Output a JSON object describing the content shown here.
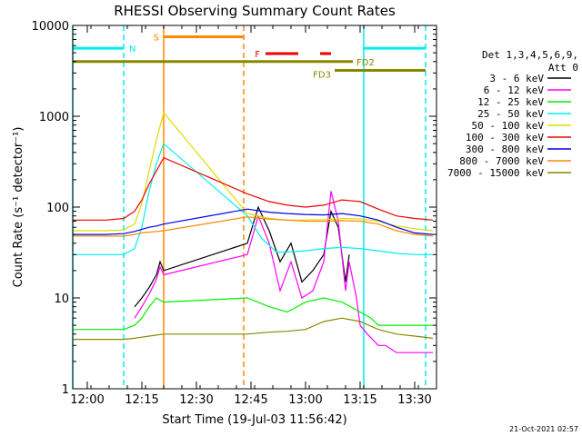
{
  "chart_data": {
    "type": "line",
    "title": "RHESSI Observing Summary Count Rates",
    "xlabel": "Start Time (19-Jul-03 11:56:42)",
    "ylabel": "Count Rate (s⁻¹ detector⁻¹)",
    "xlim": [
      "11:56",
      "13:36"
    ],
    "ylim": [
      1,
      10000
    ],
    "yscale": "log",
    "x_ticks": [
      "12:00",
      "12:15",
      "12:30",
      "12:45",
      "13:00",
      "13:15",
      "13:30"
    ],
    "y_ticks": [
      "1",
      "10",
      "100",
      "1000",
      "10000"
    ],
    "grid": false,
    "legend_header": [
      "Det 1,3,4,5,6,9,",
      "Att 0"
    ],
    "legend_position": "right",
    "series": [
      {
        "name": "3 - 6 keV",
        "color": "#000000",
        "x": [
          "12:13",
          "12:15",
          "12:17",
          "12:19",
          "12:20",
          "12:21",
          "12:44",
          "12:47",
          "12:50",
          "12:53",
          "12:56",
          "12:59",
          "13:02",
          "13:05",
          "13:07",
          "13:09",
          "13:11",
          "13:12"
        ],
        "y": [
          8,
          10,
          13,
          18,
          25,
          20,
          40,
          100,
          55,
          25,
          40,
          15,
          20,
          30,
          90,
          60,
          15,
          30
        ]
      },
      {
        "name": "6 - 12 keV",
        "color": "#ff00ff",
        "x": [
          "12:13",
          "12:15",
          "12:17",
          "12:19",
          "12:20",
          "12:21",
          "12:44",
          "12:47",
          "12:50",
          "12:53",
          "12:56",
          "12:59",
          "13:02",
          "13:05",
          "13:07",
          "13:09",
          "13:11",
          "13:12",
          "13:14",
          "13:15",
          "13:17",
          "13:20",
          "13:22",
          "13:25",
          "13:30",
          "13:35"
        ],
        "y": [
          6,
          8,
          11,
          16,
          22,
          18,
          30,
          80,
          40,
          12,
          25,
          10,
          12,
          25,
          150,
          70,
          12,
          25,
          10,
          5,
          4,
          3,
          3,
          2.5,
          2.5,
          2.5
        ]
      },
      {
        "name": "12 - 25 keV",
        "color": "#00ee00",
        "x": [
          "11:56",
          "12:05",
          "12:10",
          "12:13",
          "12:15",
          "12:17",
          "12:19",
          "12:21",
          "12:44",
          "12:50",
          "12:55",
          "13:00",
          "13:05",
          "13:10",
          "13:15",
          "13:18",
          "13:20",
          "13:25",
          "13:30",
          "13:35"
        ],
        "y": [
          4.5,
          4.5,
          4.5,
          5,
          6,
          8,
          10,
          9,
          10,
          8,
          7,
          9,
          10,
          9,
          7,
          6,
          5,
          5,
          5,
          5
        ]
      },
      {
        "name": "25 - 50 keV",
        "color": "#00eeee",
        "x": [
          "11:56",
          "12:05",
          "12:10",
          "12:13",
          "12:15",
          "12:17",
          "12:19",
          "12:21",
          "12:44",
          "12:48",
          "12:52",
          "12:55",
          "13:00",
          "13:05",
          "13:10",
          "13:15",
          "13:20",
          "13:25",
          "13:30",
          "13:35"
        ],
        "y": [
          30,
          30,
          30,
          35,
          60,
          150,
          300,
          500,
          80,
          45,
          32,
          32,
          33,
          35,
          36,
          35,
          33,
          31,
          30,
          30
        ]
      },
      {
        "name": "50 - 100 keV",
        "color": "#dddd00",
        "x": [
          "11:56",
          "12:05",
          "12:10",
          "12:13",
          "12:15",
          "12:17",
          "12:19",
          "12:21",
          "12:44",
          "12:50",
          "12:55",
          "13:00",
          "13:05",
          "13:10",
          "13:15",
          "13:20",
          "13:25",
          "13:30",
          "13:35"
        ],
        "y": [
          55,
          55,
          56,
          65,
          110,
          250,
          550,
          1100,
          85,
          75,
          72,
          72,
          73,
          75,
          74,
          70,
          62,
          58,
          55
        ]
      },
      {
        "name": "100 - 300 keV",
        "color": "#ee0000",
        "x": [
          "11:56",
          "12:05",
          "12:10",
          "12:13",
          "12:15",
          "12:17",
          "12:19",
          "12:21",
          "12:44",
          "12:50",
          "12:55",
          "13:00",
          "13:05",
          "13:10",
          "13:15",
          "13:20",
          "13:25",
          "13:30",
          "13:35"
        ],
        "y": [
          72,
          72,
          75,
          90,
          120,
          180,
          250,
          350,
          140,
          115,
          105,
          100,
          105,
          120,
          115,
          95,
          80,
          75,
          72
        ]
      },
      {
        "name": "300 - 800 keV",
        "color": "#0000ee",
        "x": [
          "11:56",
          "12:05",
          "12:10",
          "12:13",
          "12:15",
          "12:17",
          "12:19",
          "12:21",
          "12:44",
          "12:50",
          "12:55",
          "13:00",
          "13:05",
          "13:10",
          "13:15",
          "13:20",
          "13:25",
          "13:30",
          "13:35"
        ],
        "y": [
          50,
          50,
          51,
          54,
          57,
          60,
          62,
          65,
          95,
          88,
          85,
          83,
          82,
          85,
          80,
          72,
          60,
          52,
          50
        ]
      },
      {
        "name": "800 - 7000 keV",
        "color": "#ff8800",
        "x": [
          "11:56",
          "12:05",
          "12:10",
          "12:13",
          "12:15",
          "12:17",
          "12:19",
          "12:21",
          "12:44",
          "12:50",
          "12:55",
          "13:00",
          "13:05",
          "13:10",
          "13:15",
          "13:20",
          "13:25",
          "13:30",
          "13:35"
        ],
        "y": [
          48,
          48,
          48,
          50,
          52,
          53,
          54,
          55,
          78,
          74,
          72,
          70,
          70,
          71,
          70,
          65,
          55,
          50,
          48
        ]
      },
      {
        "name": "7000 - 15000 keV",
        "color": "#888800",
        "x": [
          "11:56",
          "12:05",
          "12:10",
          "12:13",
          "12:15",
          "12:17",
          "12:19",
          "12:21",
          "12:44",
          "12:50",
          "12:55",
          "13:00",
          "13:05",
          "13:10",
          "13:15",
          "13:20",
          "13:25",
          "13:30",
          "13:35"
        ],
        "y": [
          3.5,
          3.5,
          3.5,
          3.6,
          3.7,
          3.8,
          3.9,
          4,
          4,
          4.2,
          4.3,
          4.5,
          5.5,
          6,
          5.5,
          4.5,
          4,
          3.8,
          3.6
        ]
      }
    ],
    "annotations": [
      {
        "label": "N",
        "color": "#00eeee",
        "kind": "bar",
        "x_start": "11:56",
        "x_end": "12:10",
        "y": 5600
      },
      {
        "label": "",
        "color": "#00eeee",
        "kind": "bar",
        "x_start": "13:16",
        "x_end": "13:33",
        "y": 5600
      },
      {
        "label": "S",
        "color": "#ff8800",
        "kind": "bar",
        "x_start": "12:21",
        "x_end": "12:43",
        "y": 7500
      },
      {
        "label": "F",
        "color": "#ee0000",
        "kind": "bar",
        "x_start": "12:49",
        "x_end": "12:58",
        "y": 4900
      },
      {
        "label": "",
        "color": "#ee0000",
        "kind": "bar",
        "x_start": "13:04",
        "x_end": "13:07",
        "y": 4900
      },
      {
        "label": "FD2",
        "color": "#888800",
        "kind": "bar",
        "x_start": "11:56",
        "x_end": "13:13",
        "y": 4000
      },
      {
        "label": "FD3",
        "color": "#888800",
        "kind": "bar",
        "x_start": "13:08",
        "x_end": "13:33",
        "y": 3200
      }
    ],
    "vlines": [
      {
        "x": "11:56",
        "color": "#00eeee",
        "style": "solid"
      },
      {
        "x": "12:10",
        "color": "#00eeee",
        "style": "dashed"
      },
      {
        "x": "12:21",
        "color": "#ff8800",
        "style": "solid"
      },
      {
        "x": "12:43",
        "color": "#ff8800",
        "style": "dashed"
      },
      {
        "x": "13:16",
        "color": "#00eeee",
        "style": "solid"
      },
      {
        "x": "13:33",
        "color": "#00eeee",
        "style": "dashed"
      }
    ],
    "timestamp": "21-Oct-2021 02:57"
  }
}
